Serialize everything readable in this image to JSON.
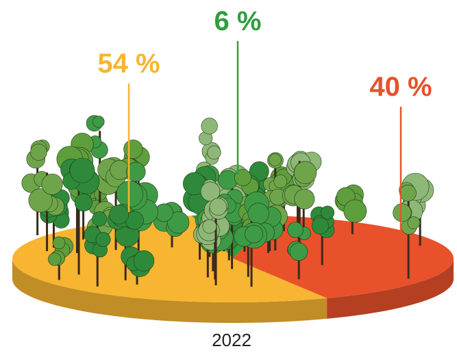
{
  "chart_data": {
    "type": "pie",
    "values": [
      54,
      6,
      40
    ],
    "value_labels": [
      "54 %",
      "6 %",
      "40 %"
    ],
    "colors": [
      "#f7b531",
      "#2f9e3e",
      "#e8512a"
    ],
    "caption": "2022"
  }
}
